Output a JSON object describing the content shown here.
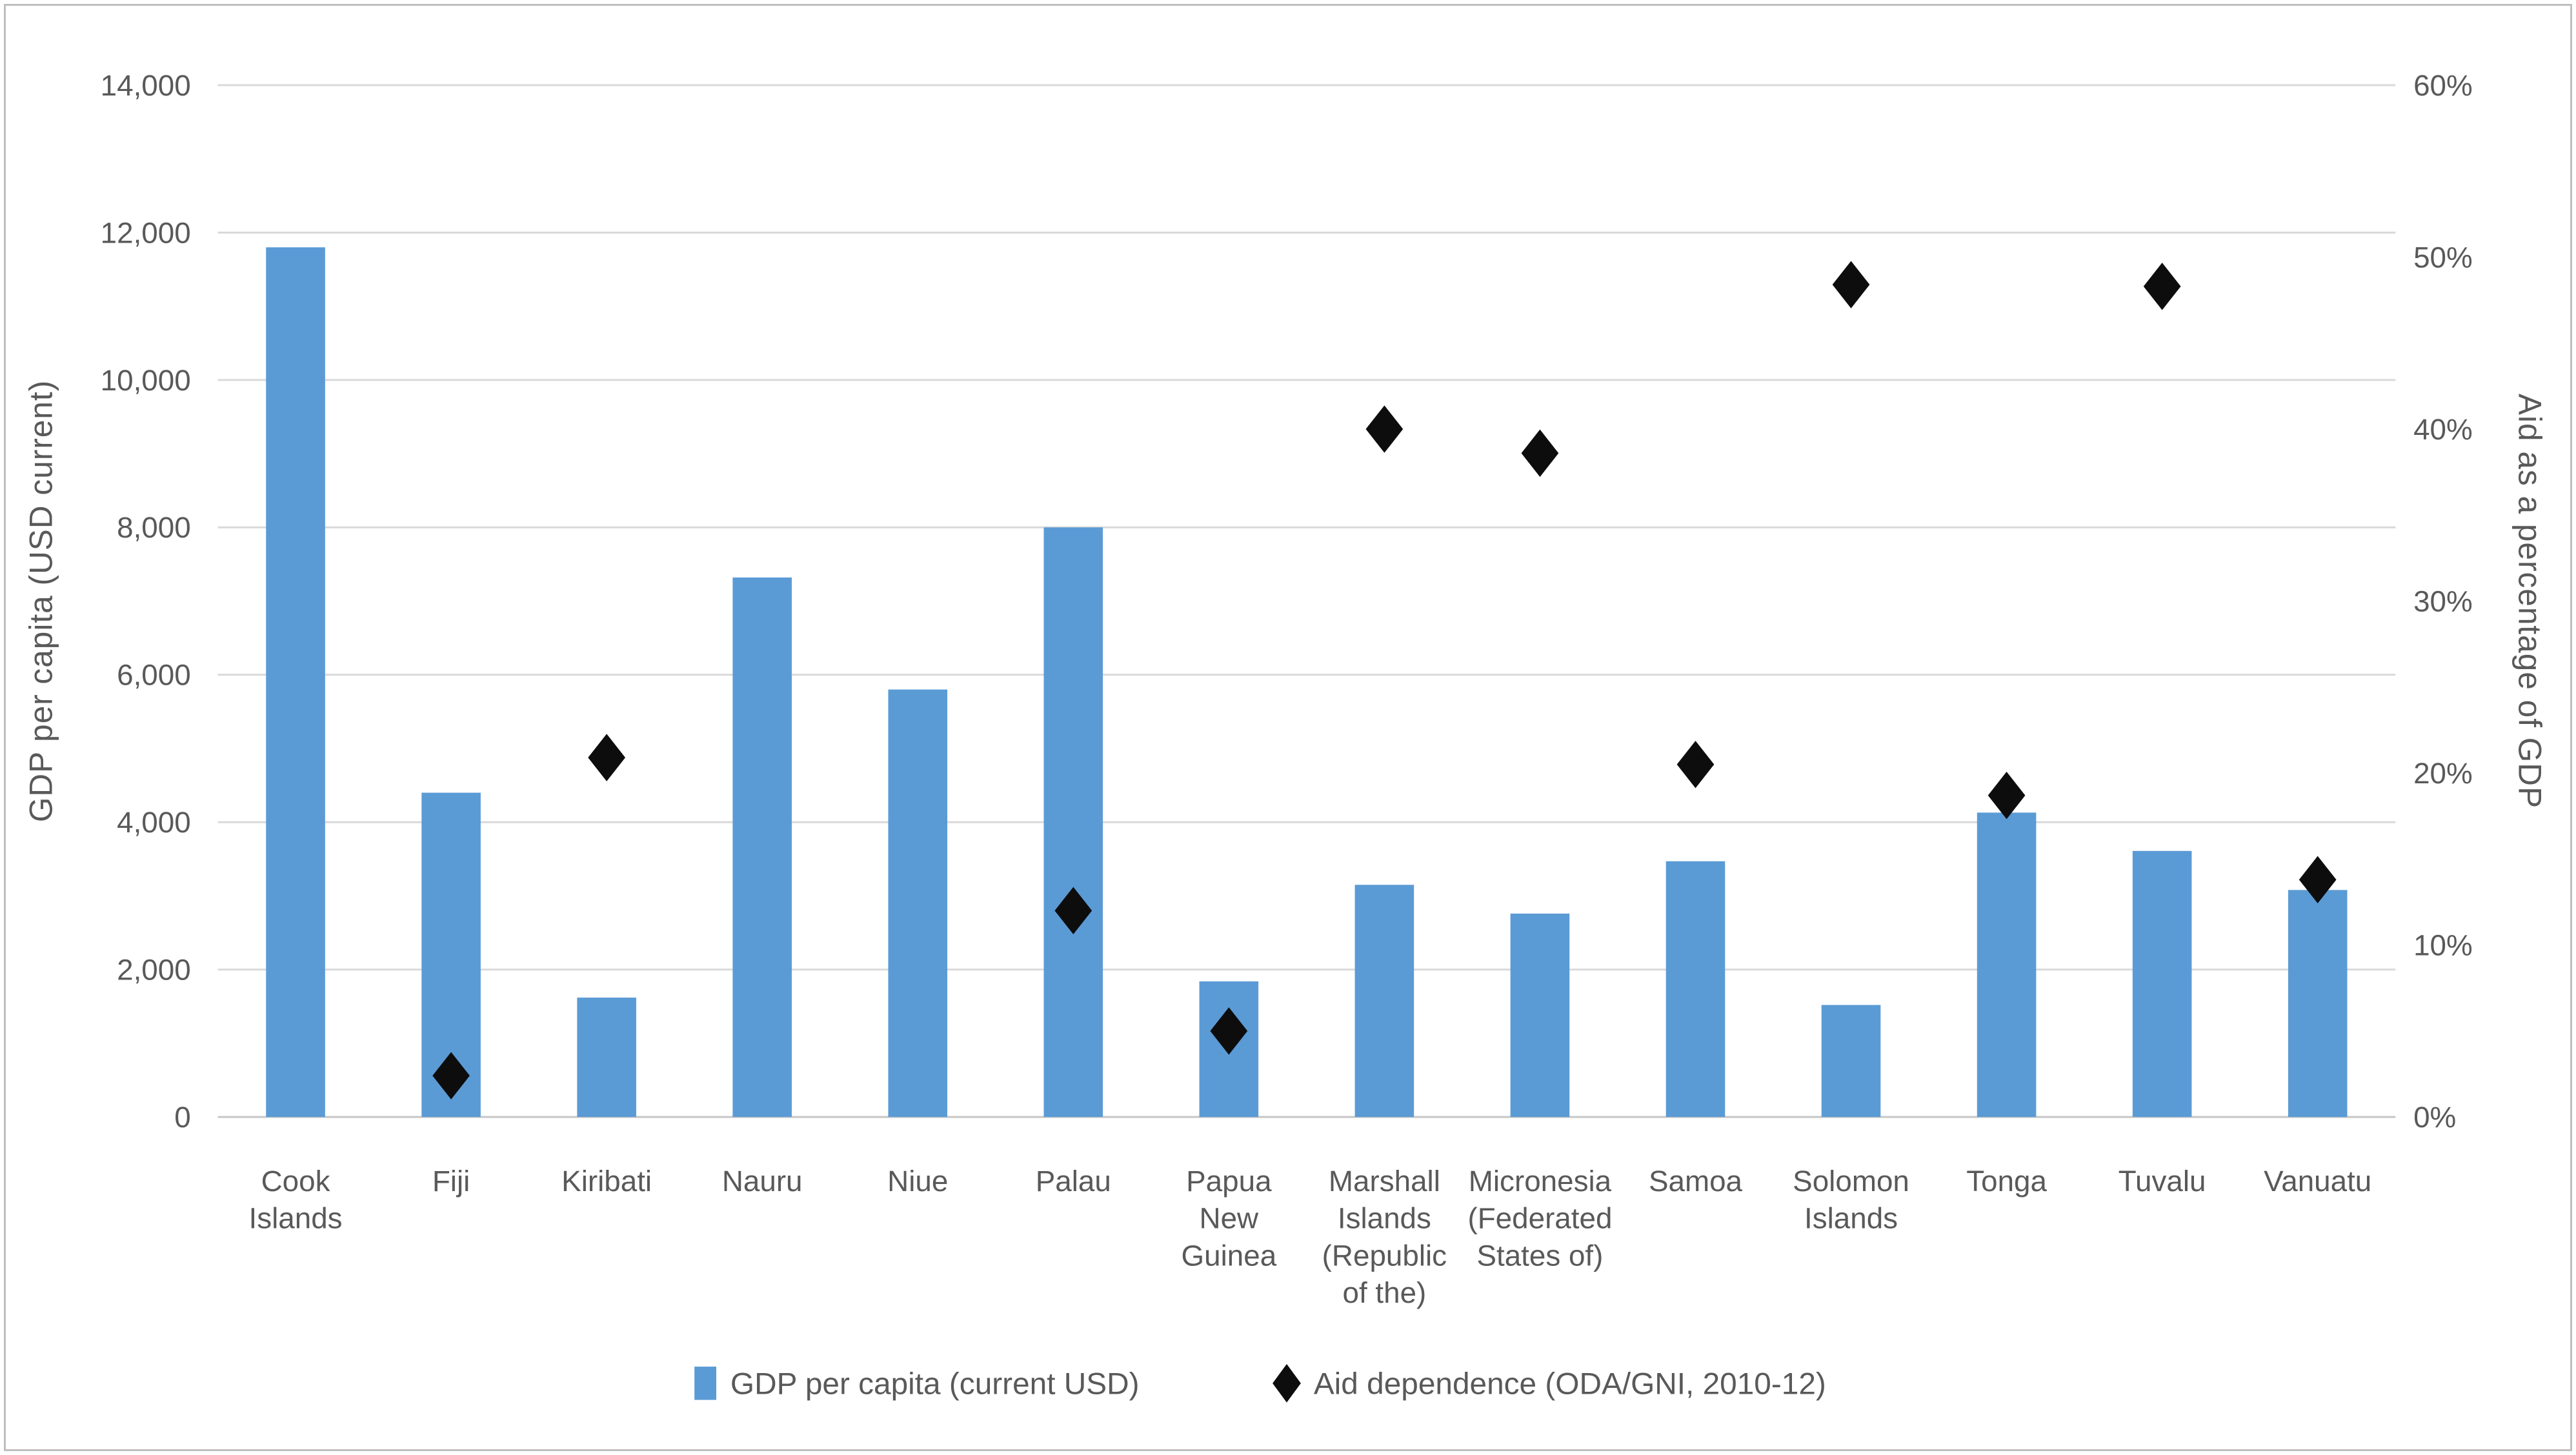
{
  "chart_data": {
    "type": "bar",
    "title": "",
    "subtitle": "",
    "categories": [
      "Cook Islands",
      "Fiji",
      "Kiribati",
      "Nauru",
      "Niue",
      "Palau",
      "Papua New Guinea",
      "Marshall Islands (Republic of the)",
      "Micronesia (Federated States of)",
      "Samoa",
      "Solomon Islands",
      "Tonga",
      "Tuvalu",
      "Vanuatu"
    ],
    "category_label_lines": [
      [
        "Cook",
        "Islands"
      ],
      [
        "Fiji"
      ],
      [
        "Kiribati"
      ],
      [
        "Nauru"
      ],
      [
        "Niue"
      ],
      [
        "Palau"
      ],
      [
        "Papua",
        "New",
        "Guinea"
      ],
      [
        "Marshall",
        "Islands",
        "(Republic",
        "of the)"
      ],
      [
        "Micronesia",
        "(Federated",
        "States of)"
      ],
      [
        "Samoa"
      ],
      [
        "Solomon",
        "Islands"
      ],
      [
        "Tonga"
      ],
      [
        "Tuvalu"
      ],
      [
        "Vanuatu"
      ]
    ],
    "series": [
      {
        "name": "GDP per capita (current USD)",
        "type": "bar",
        "axis": "left",
        "color": "#5B9BD5",
        "values": [
          11800,
          4400,
          1620,
          7320,
          5800,
          8000,
          1840,
          3150,
          2760,
          3470,
          1520,
          4130,
          3610,
          3080
        ]
      },
      {
        "name": "Aid dependence (ODA/GNI, 2010-12)",
        "type": "scatter",
        "marker": "diamond",
        "axis": "right",
        "color": "#0D0D0D",
        "values": [
          null,
          2.4,
          20.9,
          null,
          null,
          12.0,
          5.0,
          40.0,
          38.6,
          20.5,
          48.4,
          18.7,
          48.3,
          13.8
        ]
      }
    ],
    "left_axis": {
      "title": "GDP per capita (USD current)",
      "min": 0,
      "max": 14000,
      "step": 2000,
      "tick_labels": [
        "0",
        "2,000",
        "4,000",
        "6,000",
        "8,000",
        "10,000",
        "12,000",
        "14,000"
      ]
    },
    "right_axis": {
      "title": "Aid as a percentage of GDP",
      "min": 0,
      "max": 60,
      "step": 10,
      "tick_labels": [
        "0%",
        "10%",
        "20%",
        "30%",
        "40%",
        "50%",
        "60%"
      ]
    },
    "legend_position": "bottom",
    "grid": true
  },
  "colors": {
    "bar": "#5B9BD5",
    "marker": "#0D0D0D",
    "text": "#595959",
    "gridline": "#D9D9D9",
    "axis_line": "#C6C6C6",
    "border": "#BFBFBF",
    "background": "#FFFFFF"
  }
}
